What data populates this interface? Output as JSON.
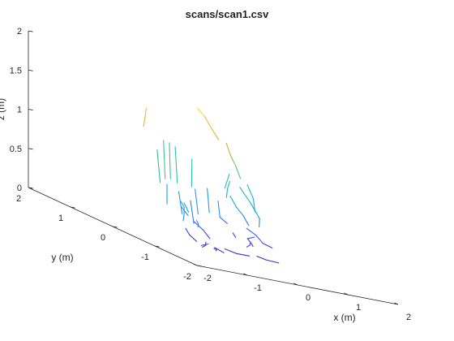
{
  "title": "scans/scan1.csv",
  "chart_data": {
    "type": "line3d",
    "title": "scans/scan1.csv",
    "xlabel": "x (m)",
    "ylabel": "y (m)",
    "zlabel": "z (m)",
    "xlim": [
      -2,
      2
    ],
    "ylim": [
      -2,
      2
    ],
    "zlim": [
      0,
      2
    ],
    "xticks": [
      "-2",
      "-1",
      "0",
      "1",
      "2"
    ],
    "yticks": [
      "-2",
      "-1",
      "0",
      "1",
      "2"
    ],
    "zticks": [
      "0",
      "0.5",
      "1",
      "1.5",
      "2"
    ],
    "grid": false,
    "colormap": "parula",
    "colormap_stops": [
      "#3e26a8",
      "#4351f5",
      "#2a8ef0",
      "#18b4cf",
      "#2dc4a0",
      "#79c45e",
      "#c7bb2c",
      "#f5b93a",
      "#f9fb0e"
    ],
    "color_by": "z",
    "series": [
      {
        "points": [
          [
            -0.55,
            -0.72,
            0.05
          ],
          [
            -0.62,
            -0.82,
            0.08
          ],
          [
            -0.74,
            -0.9,
            0.1
          ]
        ]
      },
      {
        "points": [
          [
            -0.65,
            -0.6,
            0.12
          ],
          [
            -0.72,
            -0.68,
            0.09
          ],
          [
            -0.8,
            -0.7,
            0.06
          ]
        ]
      },
      {
        "points": [
          [
            -0.1,
            -0.4,
            0.05
          ],
          [
            0.0,
            -0.55,
            0.04
          ],
          [
            0.15,
            -0.68,
            0.06
          ]
        ]
      },
      {
        "points": [
          [
            0.5,
            -0.2,
            0.1
          ],
          [
            0.6,
            -0.15,
            0.12
          ],
          [
            0.7,
            -0.05,
            0.15
          ]
        ]
      },
      {
        "points": [
          [
            -0.3,
            0.1,
            0.25
          ],
          [
            -0.2,
            0.0,
            0.18
          ],
          [
            -0.15,
            -0.1,
            0.1
          ]
        ]
      },
      {
        "points": [
          [
            -0.25,
            -0.55,
            0.02
          ],
          [
            -0.35,
            -0.45,
            0.05
          ]
        ]
      },
      {
        "points": [
          [
            0.45,
            -0.5,
            0.05
          ],
          [
            0.55,
            -0.6,
            0.04
          ],
          [
            0.7,
            -0.72,
            0.05
          ]
        ]
      },
      {
        "points": [
          [
            -0.8,
            -0.3,
            0.2
          ],
          [
            -0.68,
            -0.25,
            0.12
          ],
          [
            -0.58,
            -0.3,
            0.06
          ]
        ]
      },
      {
        "points": [
          [
            -1.0,
            -0.8,
            0.4
          ],
          [
            -0.9,
            -0.72,
            0.35
          ],
          [
            -0.85,
            -0.65,
            0.3
          ]
        ]
      },
      {
        "points": [
          [
            -0.95,
            -0.85,
            0.1
          ],
          [
            -0.9,
            -0.95,
            0.15
          ]
        ]
      },
      {
        "points": [
          [
            0.9,
            0.1,
            0.2
          ],
          [
            0.85,
            0.2,
            0.15
          ],
          [
            0.8,
            0.05,
            0.12
          ],
          [
            0.75,
            -0.05,
            0.1
          ]
        ]
      },
      {
        "points": [
          [
            0.6,
            0.25,
            0.18
          ],
          [
            0.7,
            0.3,
            0.12
          ]
        ]
      },
      {
        "points": [
          [
            -0.8,
            -0.2,
            0.45
          ],
          [
            -0.7,
            -0.15,
            0.4
          ],
          [
            -0.58,
            -0.1,
            0.34
          ]
        ]
      },
      {
        "points": [
          [
            -1.4,
            -0.9,
            0.62
          ],
          [
            -1.3,
            -0.86,
            0.55
          ],
          [
            -1.25,
            -0.8,
            0.45
          ],
          [
            -1.2,
            -0.72,
            0.35
          ]
        ]
      },
      {
        "points": [
          [
            -1.0,
            -0.5,
            0.55
          ],
          [
            -0.95,
            -0.55,
            0.45
          ]
        ]
      },
      {
        "points": [
          [
            -0.5,
            0.5,
            0.6
          ],
          [
            -0.5,
            0.5,
            0.35
          ]
        ]
      },
      {
        "points": [
          [
            -0.35,
            0.4,
            0.55
          ],
          [
            -0.3,
            0.38,
            0.28
          ]
        ]
      },
      {
        "points": [
          [
            -0.2,
            0.3,
            0.48
          ],
          [
            -0.15,
            0.28,
            0.2
          ]
        ]
      },
      {
        "points": [
          [
            0.1,
            0.55,
            0.6
          ],
          [
            0.12,
            0.5,
            0.3
          ]
        ]
      },
      {
        "points": [
          [
            0.3,
            0.5,
            0.65
          ],
          [
            0.3,
            0.45,
            0.35
          ]
        ]
      },
      {
        "points": [
          [
            0.6,
            0.6,
            0.5
          ],
          [
            0.62,
            0.58,
            0.3
          ],
          [
            0.7,
            0.5,
            0.25
          ]
        ]
      },
      {
        "points": [
          [
            0.8,
            0.55,
            0.6
          ],
          [
            0.88,
            0.5,
            0.48
          ],
          [
            0.95,
            0.42,
            0.4
          ],
          [
            1.0,
            0.35,
            0.3
          ]
        ]
      },
      {
        "points": [
          [
            1.0,
            0.8,
            0.75
          ],
          [
            0.92,
            0.76,
            0.65
          ],
          [
            0.85,
            0.7,
            0.55
          ]
        ]
      },
      {
        "points": [
          [
            0.5,
            1.1,
            0.9
          ],
          [
            0.45,
            1.05,
            0.55
          ]
        ]
      },
      {
        "points": [
          [
            0.25,
            1.2,
            1.0
          ],
          [
            0.25,
            1.15,
            0.55
          ]
        ]
      },
      {
        "points": [
          [
            0.05,
            1.1,
            1.05
          ],
          [
            0.03,
            1.05,
            0.6
          ]
        ]
      },
      {
        "points": [
          [
            -0.15,
            1.0,
            1.08
          ],
          [
            -0.16,
            0.95,
            0.6
          ]
        ]
      },
      {
        "points": [
          [
            -0.32,
            0.95,
            0.95
          ],
          [
            -0.3,
            0.9,
            0.55
          ]
        ]
      },
      {
        "points": [
          [
            -0.2,
            1.35,
            1.4
          ],
          [
            -0.28,
            1.28,
            1.3
          ],
          [
            -0.38,
            1.2,
            1.18
          ]
        ]
      },
      {
        "points": [
          [
            0.95,
            1.5,
            1.5
          ],
          [
            1.05,
            1.45,
            1.42
          ],
          [
            1.12,
            1.38,
            1.3
          ],
          [
            1.2,
            1.3,
            1.18
          ]
        ]
      },
      {
        "points": [
          [
            1.1,
            1.0,
            1.2
          ],
          [
            1.15,
            0.95,
            1.05
          ],
          [
            1.2,
            0.9,
            0.95
          ],
          [
            1.28,
            0.88,
            0.8
          ]
        ]
      },
      {
        "points": [
          [
            1.2,
            0.8,
            0.7
          ],
          [
            1.25,
            0.6,
            0.55
          ],
          [
            1.3,
            0.45,
            0.4
          ],
          [
            1.25,
            0.4,
            0.3
          ]
        ]
      },
      {
        "points": [
          [
            0.95,
            0.75,
            0.85
          ],
          [
            0.9,
            0.8,
            0.65
          ]
        ]
      },
      {
        "points": [
          [
            1.35,
            0.8,
            0.75
          ],
          [
            1.4,
            0.72,
            0.6
          ],
          [
            1.35,
            0.62,
            0.45
          ]
        ]
      },
      {
        "points": [
          [
            1.0,
            0.4,
            0.25
          ],
          [
            1.1,
            0.3,
            0.2
          ],
          [
            1.2,
            0.25,
            0.12
          ],
          [
            1.3,
            0.15,
            0.1
          ]
        ]
      }
    ]
  }
}
